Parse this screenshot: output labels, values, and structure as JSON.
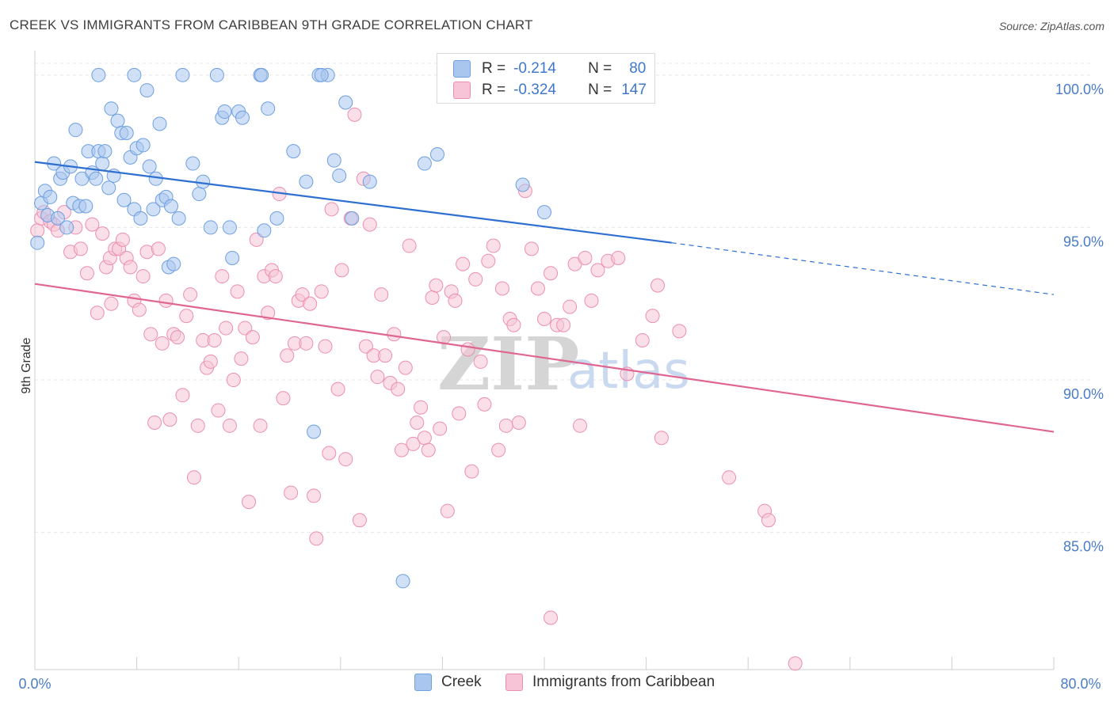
{
  "title": "CREEK VS IMMIGRANTS FROM CARIBBEAN 9TH GRADE CORRELATION CHART",
  "source": "Source: ZipAtlas.com",
  "colors": {
    "creek": "#6e9fe0",
    "creek_fill": "#a9c6ef",
    "caribbean": "#ec8eb0",
    "caribbean_fill": "#f6c4d6",
    "creek_line": "#2e6fd1",
    "caribbean_line": "#e06692",
    "tick_text": "#4a7cc9"
  },
  "legend": {
    "row1": {
      "r_label": "R =",
      "r_value": "-0.214",
      "n_label": "N =",
      "n_value": "80"
    },
    "row2": {
      "r_label": "R =",
      "r_value": "-0.324",
      "n_label": "N =",
      "n_value": "147"
    }
  },
  "bottom_legend": {
    "series1": "Creek",
    "series2": "Immigrants from Caribbean"
  },
  "watermark": {
    "zip": "ZIP",
    "atlas": "atlas"
  },
  "chart_data": {
    "type": "scatter",
    "title": "CREEK VS IMMIGRANTS FROM CARIBBEAN 9TH GRADE CORRELATION CHART",
    "xlabel": "",
    "ylabel": "9th Grade",
    "xlim": [
      0,
      80
    ],
    "ylim": [
      80.5,
      100.8
    ],
    "x_tick_labels": [
      "0.0%",
      "80.0%"
    ],
    "y_ticks": [
      85,
      90,
      95,
      100
    ],
    "y_tick_labels": [
      "85.0%",
      "90.0%",
      "95.0%",
      "100.0%"
    ],
    "grid": true,
    "legend_position": "top-center",
    "series": [
      {
        "name": "Creek",
        "r": -0.214,
        "n": 80,
        "trend": {
          "x0": 0,
          "y0": 97.15,
          "x1": 50,
          "y1": 94.5,
          "dashed_to_x": 80,
          "dashed_to_y": 92.8
        },
        "points": [
          [
            0.2,
            94.5
          ],
          [
            0.5,
            95.8
          ],
          [
            0.8,
            96.2
          ],
          [
            1.0,
            95.4
          ],
          [
            1.2,
            96.0
          ],
          [
            1.5,
            97.1
          ],
          [
            1.8,
            95.3
          ],
          [
            2.0,
            96.6
          ],
          [
            2.2,
            96.8
          ],
          [
            2.5,
            95.0
          ],
          [
            2.8,
            97.0
          ],
          [
            3.0,
            95.8
          ],
          [
            3.2,
            98.2
          ],
          [
            3.5,
            95.7
          ],
          [
            3.7,
            96.6
          ],
          [
            4.0,
            95.7
          ],
          [
            4.2,
            97.5
          ],
          [
            4.5,
            96.8
          ],
          [
            4.8,
            96.6
          ],
          [
            5.0,
            97.5
          ],
          [
            5.3,
            97.1
          ],
          [
            5.5,
            97.5
          ],
          [
            5.8,
            96.3
          ],
          [
            6.0,
            98.9
          ],
          [
            6.2,
            96.7
          ],
          [
            6.5,
            98.5
          ],
          [
            6.8,
            98.1
          ],
          [
            7.0,
            95.9
          ],
          [
            7.2,
            98.1
          ],
          [
            7.5,
            97.3
          ],
          [
            7.8,
            95.6
          ],
          [
            8.0,
            97.6
          ],
          [
            8.3,
            95.3
          ],
          [
            8.5,
            97.7
          ],
          [
            8.8,
            99.5
          ],
          [
            9.0,
            97.0
          ],
          [
            9.3,
            95.6
          ],
          [
            9.5,
            96.6
          ],
          [
            9.8,
            98.4
          ],
          [
            10.0,
            95.9
          ],
          [
            10.3,
            96.0
          ],
          [
            10.5,
            93.7
          ],
          [
            10.7,
            95.7
          ],
          [
            10.9,
            93.8
          ],
          [
            11.3,
            95.3
          ],
          [
            11.6,
            100.0
          ],
          [
            12.4,
            97.1
          ],
          [
            12.9,
            96.1
          ],
          [
            13.2,
            96.5
          ],
          [
            13.8,
            95.0
          ],
          [
            14.3,
            100.0
          ],
          [
            14.7,
            98.6
          ],
          [
            14.9,
            98.8
          ],
          [
            15.3,
            95.0
          ],
          [
            15.5,
            94.0
          ],
          [
            16.0,
            98.8
          ],
          [
            16.3,
            98.6
          ],
          [
            17.7,
            100.0
          ],
          [
            18.0,
            94.9
          ],
          [
            18.3,
            98.9
          ],
          [
            19.0,
            95.3
          ],
          [
            20.3,
            97.5
          ],
          [
            21.3,
            96.5
          ],
          [
            21.9,
            88.3
          ],
          [
            22.3,
            100.0
          ],
          [
            23.0,
            100.0
          ],
          [
            23.5,
            97.2
          ],
          [
            23.9,
            96.7
          ],
          [
            24.4,
            99.1
          ],
          [
            24.9,
            95.3
          ],
          [
            26.3,
            96.5
          ],
          [
            28.9,
            83.4
          ],
          [
            30.6,
            97.1
          ],
          [
            31.6,
            97.4
          ],
          [
            38.3,
            96.4
          ],
          [
            40.0,
            95.5
          ],
          [
            5.0,
            100.0
          ],
          [
            7.8,
            100.0
          ],
          [
            22.5,
            100.0
          ],
          [
            17.8,
            100.0
          ]
        ]
      },
      {
        "name": "Immigrants from Caribbean",
        "r": -0.324,
        "n": 147,
        "trend": {
          "x0": 0,
          "y0": 93.15,
          "x1": 80,
          "y1": 88.3
        },
        "points": [
          [
            0.2,
            94.9
          ],
          [
            0.5,
            95.3
          ],
          [
            0.7,
            95.5
          ],
          [
            1.2,
            95.2
          ],
          [
            1.5,
            95.1
          ],
          [
            1.8,
            94.9
          ],
          [
            2.3,
            95.5
          ],
          [
            2.8,
            94.2
          ],
          [
            3.2,
            95.0
          ],
          [
            3.6,
            94.3
          ],
          [
            4.1,
            93.5
          ],
          [
            4.5,
            95.1
          ],
          [
            4.9,
            92.2
          ],
          [
            5.3,
            94.8
          ],
          [
            5.6,
            93.7
          ],
          [
            5.9,
            94.0
          ],
          [
            6.3,
            94.3
          ],
          [
            6.6,
            94.3
          ],
          [
            6.9,
            94.6
          ],
          [
            7.2,
            94.0
          ],
          [
            7.5,
            93.7
          ],
          [
            7.8,
            92.6
          ],
          [
            8.2,
            92.3
          ],
          [
            8.5,
            93.4
          ],
          [
            8.8,
            94.2
          ],
          [
            9.1,
            91.5
          ],
          [
            9.4,
            88.6
          ],
          [
            9.7,
            94.3
          ],
          [
            10.0,
            91.2
          ],
          [
            10.3,
            92.6
          ],
          [
            10.6,
            88.7
          ],
          [
            10.9,
            91.5
          ],
          [
            11.2,
            91.4
          ],
          [
            11.6,
            89.5
          ],
          [
            11.9,
            92.1
          ],
          [
            12.2,
            92.8
          ],
          [
            12.5,
            86.8
          ],
          [
            12.8,
            88.5
          ],
          [
            13.2,
            91.3
          ],
          [
            13.5,
            90.4
          ],
          [
            13.8,
            90.6
          ],
          [
            14.1,
            91.3
          ],
          [
            14.4,
            89.0
          ],
          [
            14.7,
            93.4
          ],
          [
            15.0,
            91.7
          ],
          [
            15.3,
            88.5
          ],
          [
            15.6,
            90.0
          ],
          [
            15.9,
            92.9
          ],
          [
            16.2,
            90.7
          ],
          [
            16.5,
            91.7
          ],
          [
            16.8,
            86.0
          ],
          [
            17.1,
            91.4
          ],
          [
            17.4,
            94.6
          ],
          [
            17.7,
            88.5
          ],
          [
            18.0,
            93.4
          ],
          [
            18.3,
            92.2
          ],
          [
            18.6,
            93.6
          ],
          [
            18.9,
            93.4
          ],
          [
            19.2,
            96.1
          ],
          [
            19.5,
            89.4
          ],
          [
            19.8,
            90.8
          ],
          [
            20.1,
            86.3
          ],
          [
            20.4,
            91.2
          ],
          [
            20.7,
            92.6
          ],
          [
            21.0,
            92.8
          ],
          [
            21.3,
            91.2
          ],
          [
            21.6,
            92.5
          ],
          [
            21.9,
            86.2
          ],
          [
            22.1,
            84.8
          ],
          [
            22.5,
            92.9
          ],
          [
            22.8,
            91.1
          ],
          [
            23.1,
            87.6
          ],
          [
            23.3,
            95.6
          ],
          [
            23.8,
            89.7
          ],
          [
            24.1,
            93.6
          ],
          [
            24.4,
            87.4
          ],
          [
            24.8,
            95.3
          ],
          [
            25.1,
            98.7
          ],
          [
            25.5,
            85.4
          ],
          [
            25.8,
            96.6
          ],
          [
            26.0,
            91.1
          ],
          [
            26.3,
            95.1
          ],
          [
            26.6,
            90.8
          ],
          [
            26.9,
            90.1
          ],
          [
            27.2,
            92.8
          ],
          [
            27.5,
            90.8
          ],
          [
            27.9,
            89.9
          ],
          [
            28.2,
            91.5
          ],
          [
            28.5,
            89.7
          ],
          [
            28.8,
            87.7
          ],
          [
            29.1,
            90.4
          ],
          [
            29.4,
            94.4
          ],
          [
            29.7,
            87.9
          ],
          [
            30.0,
            88.6
          ],
          [
            30.3,
            89.1
          ],
          [
            30.6,
            88.1
          ],
          [
            30.9,
            87.7
          ],
          [
            31.2,
            92.7
          ],
          [
            31.5,
            93.1
          ],
          [
            31.8,
            88.4
          ],
          [
            32.1,
            91.4
          ],
          [
            32.4,
            85.7
          ],
          [
            32.7,
            92.9
          ],
          [
            33.0,
            92.6
          ],
          [
            33.3,
            88.9
          ],
          [
            33.6,
            93.8
          ],
          [
            34.0,
            91.0
          ],
          [
            34.3,
            87.0
          ],
          [
            34.6,
            93.3
          ],
          [
            35.0,
            90.6
          ],
          [
            35.3,
            89.2
          ],
          [
            35.6,
            93.9
          ],
          [
            36.0,
            94.4
          ],
          [
            36.4,
            87.7
          ],
          [
            36.7,
            93.0
          ],
          [
            37.0,
            88.5
          ],
          [
            37.3,
            92.0
          ],
          [
            37.6,
            91.8
          ],
          [
            38.0,
            88.6
          ],
          [
            38.5,
            96.2
          ],
          [
            39.0,
            94.3
          ],
          [
            39.5,
            93.0
          ],
          [
            40.0,
            92.0
          ],
          [
            40.5,
            93.5
          ],
          [
            41.0,
            91.8
          ],
          [
            41.5,
            91.8
          ],
          [
            42.0,
            92.4
          ],
          [
            42.4,
            93.8
          ],
          [
            42.8,
            88.5
          ],
          [
            43.2,
            94.0
          ],
          [
            43.7,
            92.6
          ],
          [
            44.2,
            93.6
          ],
          [
            45.0,
            93.9
          ],
          [
            45.8,
            94.0
          ],
          [
            46.0,
            100.0
          ],
          [
            46.5,
            90.2
          ],
          [
            47.7,
            91.3
          ],
          [
            48.5,
            92.1
          ],
          [
            48.9,
            93.1
          ],
          [
            49.2,
            88.1
          ],
          [
            50.6,
            91.6
          ],
          [
            54.5,
            86.8
          ],
          [
            57.3,
            85.7
          ],
          [
            57.6,
            85.4
          ],
          [
            59.7,
            80.7
          ],
          [
            40.5,
            82.2
          ],
          [
            6.0,
            92.5
          ]
        ]
      }
    ]
  }
}
